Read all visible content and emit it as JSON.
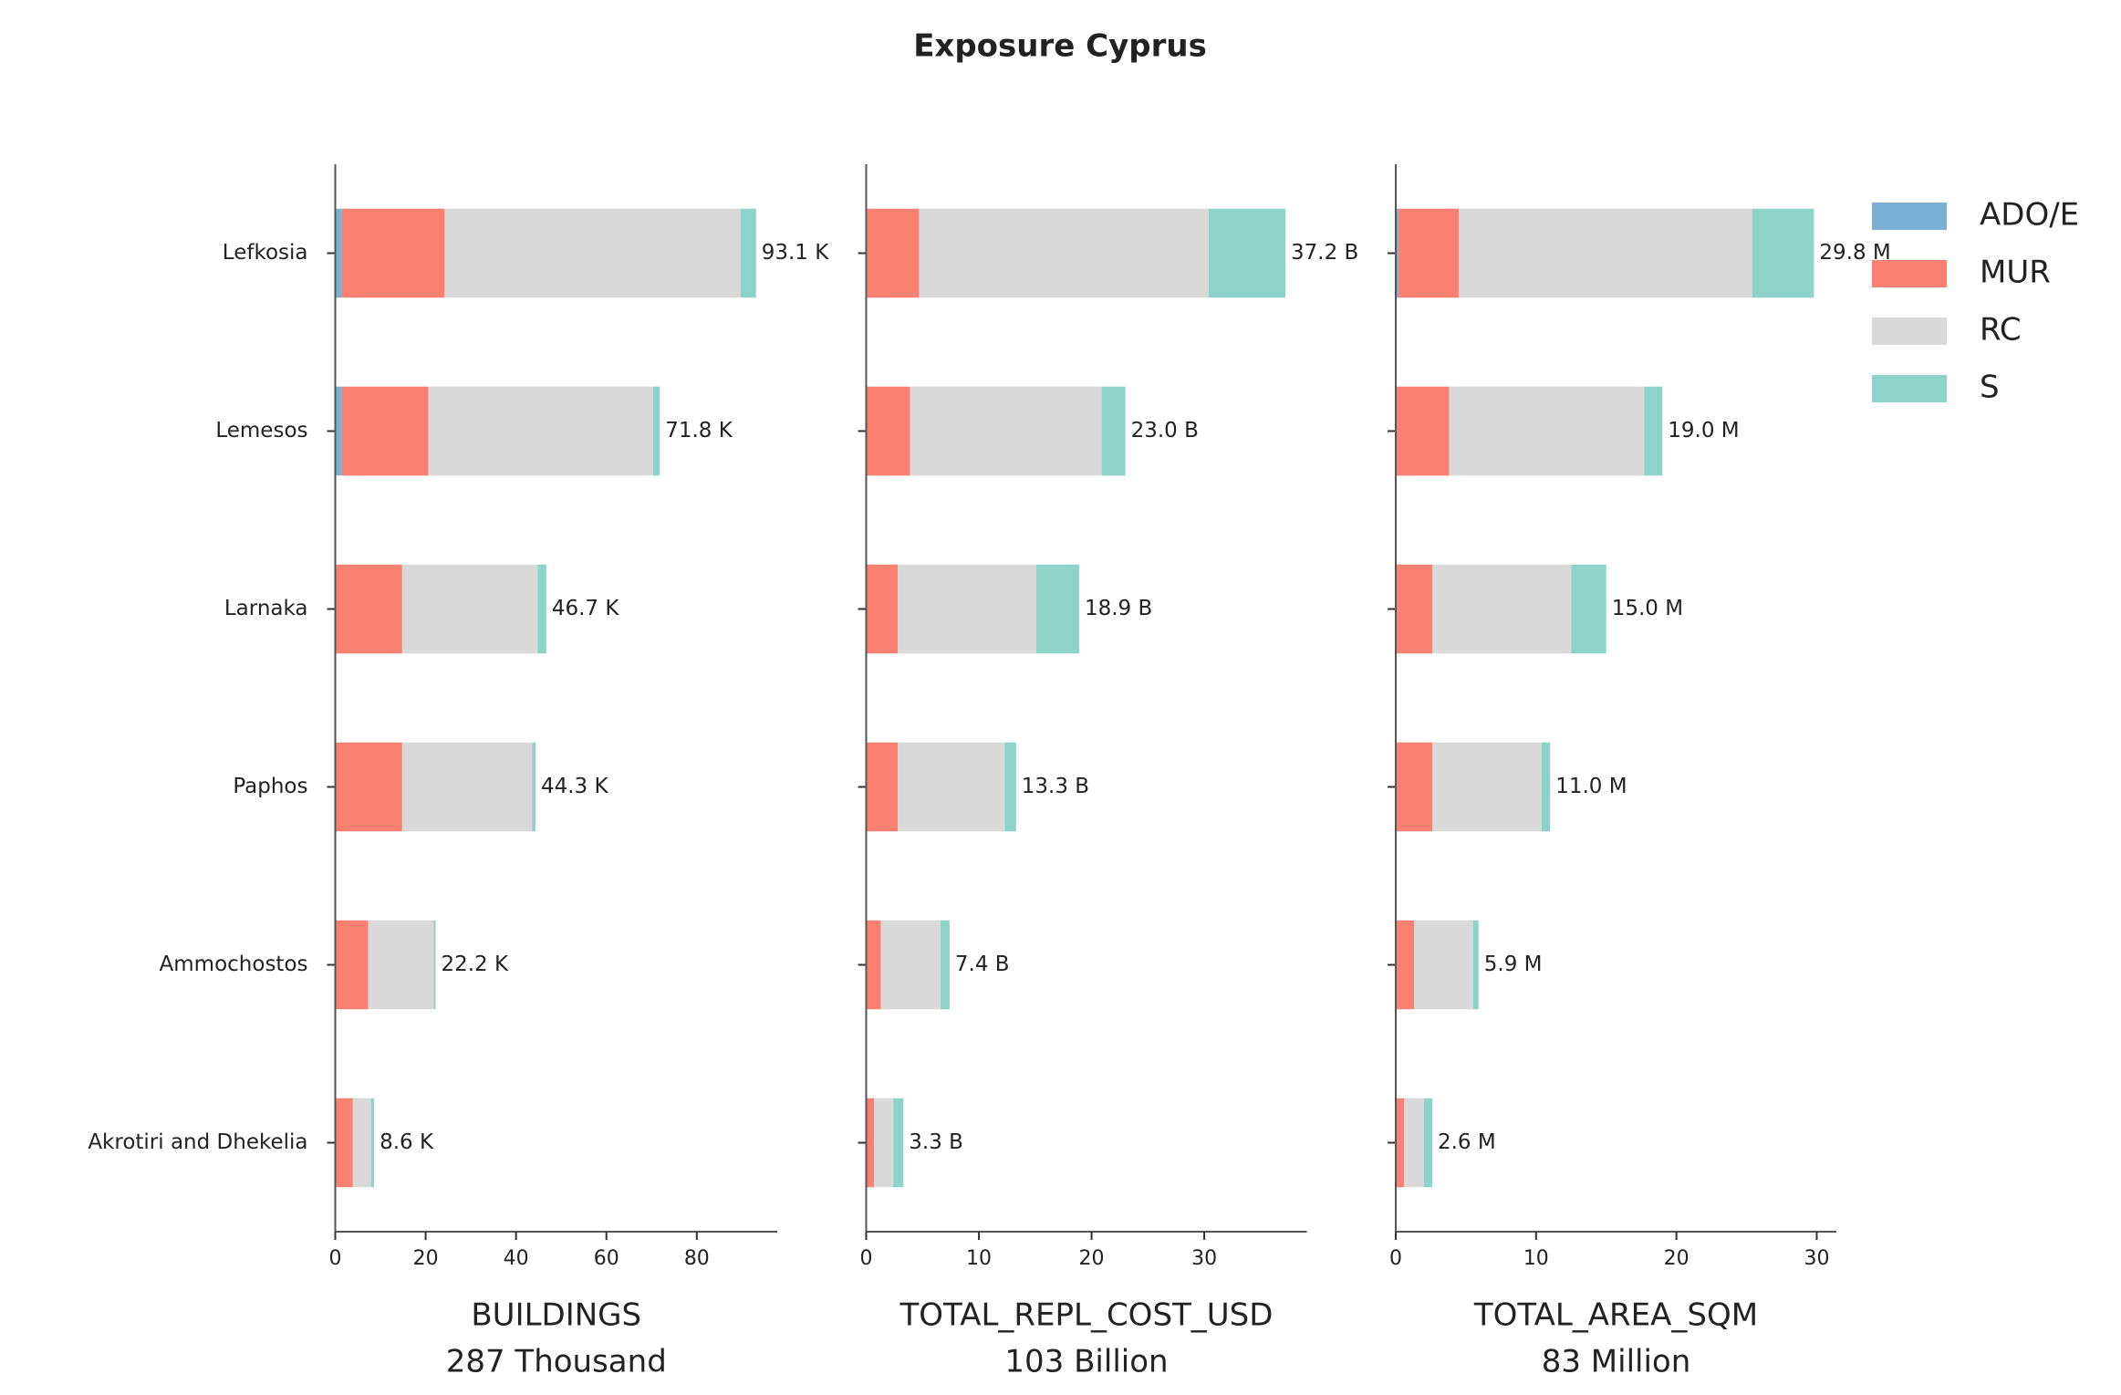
{
  "title": "Exposure Cyprus",
  "chart_data": [
    {
      "type": "bar",
      "orientation": "horizontal",
      "stacked": true,
      "categories": [
        "Lefkosia",
        "Lemesos",
        "Larnaka",
        "Paphos",
        "Ammochostos",
        "Akrotiri and Dhekelia"
      ],
      "series": [
        {
          "name": "ADO/E",
          "color": "#7bafd4",
          "values": [
            1.5,
            1.5,
            0.2,
            0.1,
            0,
            0
          ]
        },
        {
          "name": "MUR",
          "color": "#fa8072",
          "values": [
            22.7,
            19.1,
            14.6,
            14.7,
            7.3,
            3.9
          ]
        },
        {
          "name": "RC",
          "color": "#d9d9d9",
          "values": [
            65.5,
            49.7,
            30.0,
            28.8,
            14.5,
            4.0
          ]
        },
        {
          "name": "S",
          "color": "#8dd3c7",
          "values": [
            3.4,
            1.5,
            1.9,
            0.7,
            0.4,
            0.7
          ]
        }
      ],
      "totals": {
        "values": [
          93.1,
          71.8,
          46.7,
          44.3,
          22.2,
          8.6
        ],
        "value_labels": [
          "93.1 K",
          "71.8 K",
          "46.7 K",
          "44.3 K",
          "22.2 K",
          "8.6 K"
        ]
      },
      "xlim": [
        0,
        97.8
      ],
      "xticks": [
        0,
        20,
        40,
        60,
        80
      ],
      "xlabel": "BUILDINGS",
      "xlabel_sub": "287 Thousand"
    },
    {
      "type": "bar",
      "orientation": "horizontal",
      "stacked": true,
      "series": [
        {
          "color": "#7bafd4",
          "values": [
            0.1,
            0,
            0,
            0,
            0,
            0
          ]
        },
        {
          "color": "#fa8072",
          "values": [
            4.6,
            3.9,
            2.8,
            2.8,
            1.3,
            0.7
          ]
        },
        {
          "color": "#d9d9d9",
          "values": [
            25.7,
            17.0,
            12.3,
            9.5,
            5.3,
            1.7
          ]
        },
        {
          "color": "#8dd3c7",
          "values": [
            6.8,
            2.1,
            3.8,
            1.0,
            0.8,
            0.9
          ]
        }
      ],
      "totals": {
        "values": [
          37.2,
          23.0,
          18.9,
          13.3,
          7.4,
          3.3
        ],
        "value_labels": [
          "37.2 B",
          "23.0 B",
          "18.9 B",
          "13.3 B",
          "7.4 B",
          "3.3 B"
        ]
      },
      "xlim": [
        0,
        39.1
      ],
      "xticks": [
        0,
        10,
        20,
        30
      ],
      "xlabel": "TOTAL_REPL_COST_USD",
      "xlabel_sub": "103 Billion"
    },
    {
      "type": "bar",
      "orientation": "horizontal",
      "stacked": true,
      "series": [
        {
          "color": "#7bafd4",
          "values": [
            0.2,
            0,
            0,
            0,
            0,
            0
          ]
        },
        {
          "color": "#fa8072",
          "values": [
            4.3,
            3.8,
            2.6,
            2.6,
            1.3,
            0.6
          ]
        },
        {
          "color": "#d9d9d9",
          "values": [
            20.9,
            13.9,
            9.9,
            7.8,
            4.2,
            1.4
          ]
        },
        {
          "color": "#8dd3c7",
          "values": [
            4.4,
            1.3,
            2.5,
            0.6,
            0.4,
            0.6
          ]
        }
      ],
      "totals": {
        "values": [
          29.8,
          19.0,
          15.0,
          11.0,
          5.9,
          2.6
        ],
        "value_labels": [
          "29.8 M",
          "19.0 M",
          "15.0 M",
          "11.0 M",
          "5.9 M",
          "2.6 M"
        ]
      },
      "xlim": [
        0,
        31.4
      ],
      "xticks": [
        0,
        10,
        20,
        30
      ],
      "xlabel": "TOTAL_AREA_SQM",
      "xlabel_sub": "83 Million"
    }
  ],
  "legend": "upper right"
}
